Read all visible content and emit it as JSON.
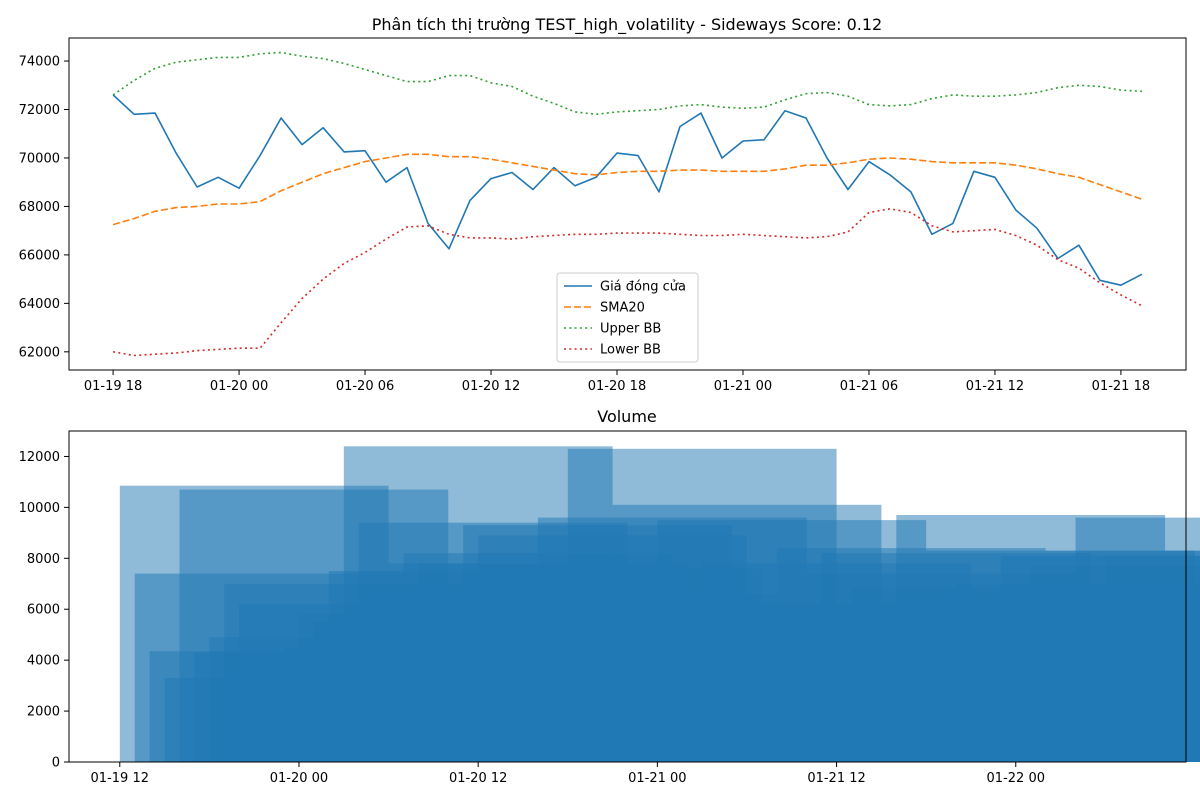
{
  "colors": {
    "close": "#1f77b4",
    "sma": "#ff7f0e",
    "upper": "#2ca02c",
    "lower": "#d62728",
    "volume": "#1f77b4"
  },
  "chart_data": [
    {
      "type": "line",
      "title": "Phân tích thị trường TEST_high_volatility - Sideways Score: 0.12",
      "x_start": "2024-01-19 18:00",
      "x_step_hours": 1,
      "x_tick_labels": [
        "01-19 18",
        "01-20 00",
        "01-20 06",
        "01-20 12",
        "01-20 18",
        "01-21 00",
        "01-21 06",
        "01-21 12",
        "01-21 18"
      ],
      "y_ticks": [
        62000,
        64000,
        66000,
        68000,
        70000,
        72000,
        74000
      ],
      "ylim": [
        61250,
        74950
      ],
      "xlim_hours": [
        -2.1,
        51.1
      ],
      "grid": false,
      "legend_position": "lower center",
      "series": [
        {
          "name": "Giá đóng cửa",
          "style": "solid",
          "color_key": "close",
          "values": [
            72600,
            71800,
            71850,
            70200,
            68800,
            69200,
            68750,
            70100,
            71650,
            70550,
            71250,
            70250,
            70300,
            69000,
            69600,
            67300,
            66250,
            68250,
            69150,
            69400,
            68700,
            69600,
            68850,
            69200,
            70200,
            70100,
            68600,
            71300,
            71850,
            70000,
            70700,
            70750,
            71950,
            71650,
            70000,
            68700,
            69850,
            69300,
            68600,
            66850,
            67300,
            69450,
            69200,
            67850,
            67100,
            65850,
            66400,
            64950,
            64750,
            65200
          ]
        },
        {
          "name": "SMA20",
          "style": "dashed",
          "color_key": "sma",
          "values": [
            67250,
            67500,
            67800,
            67950,
            68000,
            68100,
            68100,
            68200,
            68650,
            69000,
            69350,
            69600,
            69850,
            70000,
            70150,
            70150,
            70050,
            70050,
            69950,
            69800,
            69650,
            69500,
            69350,
            69300,
            69400,
            69450,
            69450,
            69500,
            69500,
            69450,
            69450,
            69450,
            69550,
            69700,
            69700,
            69800,
            69950,
            70000,
            69950,
            69850,
            69800,
            69800,
            69800,
            69700,
            69550,
            69350,
            69200,
            68900,
            68600,
            68300
          ]
        },
        {
          "name": "Upper BB",
          "style": "dotted",
          "color_key": "upper",
          "values": [
            72600,
            73200,
            73700,
            73950,
            74050,
            74150,
            74150,
            74300,
            74350,
            74200,
            74100,
            73900,
            73650,
            73400,
            73150,
            73150,
            73400,
            73400,
            73100,
            72950,
            72550,
            72250,
            71900,
            71800,
            71900,
            71950,
            72000,
            72150,
            72200,
            72100,
            72050,
            72100,
            72400,
            72650,
            72700,
            72550,
            72200,
            72150,
            72200,
            72450,
            72600,
            72550,
            72550,
            72600,
            72700,
            72900,
            73000,
            72950,
            72800,
            72750
          ]
        },
        {
          "name": "Lower BB",
          "style": "dotted",
          "color_key": "lower",
          "values": [
            62000,
            61850,
            61900,
            61950,
            62050,
            62100,
            62150,
            62150,
            63200,
            64200,
            65000,
            65650,
            66100,
            66650,
            67150,
            67200,
            66850,
            66700,
            66700,
            66650,
            66750,
            66800,
            66850,
            66850,
            66900,
            66900,
            66900,
            66850,
            66800,
            66800,
            66850,
            66800,
            66750,
            66700,
            66750,
            66950,
            67750,
            67900,
            67750,
            67200,
            66950,
            67000,
            67050,
            66800,
            66400,
            65800,
            65450,
            64850,
            64350,
            63900
          ]
        }
      ]
    },
    {
      "type": "bar",
      "title": "Volume",
      "x_tick_labels": [
        "01-19 12",
        "01-20 00",
        "01-20 12",
        "01-21 00",
        "01-21 12",
        "01-22 00"
      ],
      "y_ticks": [
        0,
        2000,
        4000,
        6000,
        8000,
        10000,
        12000
      ],
      "ylim": [
        0,
        13000
      ],
      "xlim_hours": [
        -3.4,
        71.4
      ],
      "bar_width_hours": 18,
      "bar_alpha": 0.5,
      "grid": false,
      "bar_start_hours": [
        0,
        1,
        2,
        3,
        4,
        5,
        6,
        7,
        8,
        9,
        10,
        11,
        12,
        13,
        14,
        15,
        16,
        17,
        18,
        19,
        20,
        21,
        22,
        23,
        24,
        25,
        26,
        27,
        28,
        29,
        30,
        31,
        32,
        33,
        34,
        35,
        36,
        37,
        38,
        39,
        40,
        41,
        42,
        43,
        44,
        45,
        46,
        47,
        48,
        49,
        50,
        51,
        52,
        53,
        54,
        55,
        56,
        57,
        58,
        59,
        60,
        61,
        62,
        63,
        64,
        65,
        66,
        67,
        68,
        69,
        70
      ],
      "values": [
        10850,
        7400,
        4350,
        3300,
        10700,
        4300,
        4900,
        7000,
        6200,
        4000,
        3000,
        4500,
        5800,
        5500,
        7500,
        12400,
        9400,
        6500,
        7800,
        8200,
        7800,
        5000,
        5000,
        9300,
        8900,
        7600,
        6600,
        5500,
        9600,
        5000,
        12300,
        5500,
        5100,
        10100,
        6000,
        5900,
        9500,
        5000,
        4000,
        7800,
        5500,
        6200,
        5700,
        5400,
        8400,
        5200,
        7400,
        8200,
        4900,
        6800,
        6000,
        5300,
        9700,
        6300,
        8300,
        4000,
        7000,
        5800,
        3500,
        8100,
        6600,
        7700,
        8300,
        6200,
        9600,
        5700,
        8100,
        6600,
        5900,
        1400,
        8300
      ]
    }
  ]
}
